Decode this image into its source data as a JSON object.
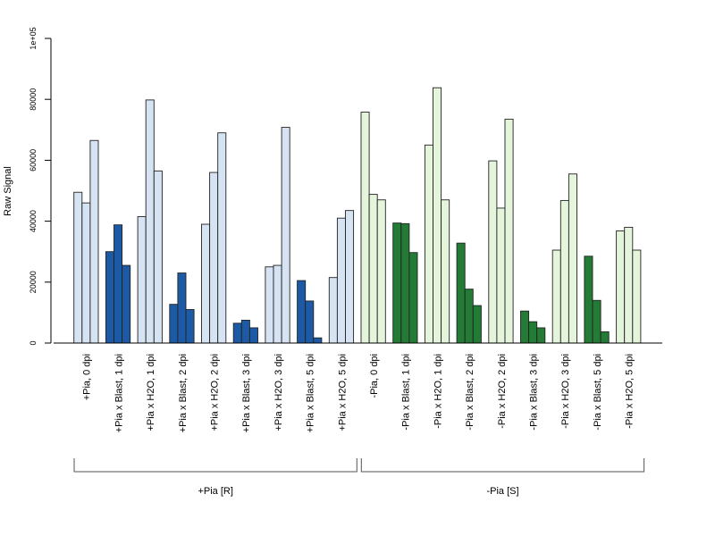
{
  "chart_data": {
    "type": "bar",
    "ylabel": "Raw Signal",
    "ylim": [
      0,
      100000
    ],
    "yticks": [
      0,
      20000,
      40000,
      60000,
      80000,
      100000
    ],
    "ytick_labels": [
      "0",
      "20000",
      "40000",
      "60000",
      "80000",
      "1e+05"
    ],
    "grid": false,
    "colors": {
      "pia_light": "#d6e3f3",
      "pia_dark": "#1c5aa6",
      "nopia_light": "#e4f5dc",
      "nopia_dark": "#237b35"
    },
    "categories": [
      {
        "label": "+Pia, 0 dpi",
        "values": [
          49500,
          46000,
          66500
        ],
        "color": "pia_light"
      },
      {
        "label": "+Pia x Blast, 1 dpi",
        "values": [
          30000,
          38800,
          25500
        ],
        "color": "pia_dark"
      },
      {
        "label": "+Pia x H2O, 1 dpi",
        "values": [
          41500,
          79800,
          56500
        ],
        "color": "pia_light"
      },
      {
        "label": "+Pia x Blast, 2 dpi",
        "values": [
          12700,
          23000,
          11000
        ],
        "color": "pia_dark"
      },
      {
        "label": "+Pia x H2O, 2 dpi",
        "values": [
          39000,
          56000,
          69000
        ],
        "color": "pia_light"
      },
      {
        "label": "+Pia x Blast, 3 dpi",
        "values": [
          6500,
          7500,
          5000
        ],
        "color": "pia_dark"
      },
      {
        "label": "+Pia x H2O, 3 dpi",
        "values": [
          25000,
          25500,
          70800
        ],
        "color": "pia_light"
      },
      {
        "label": "+Pia x Blast, 5 dpi",
        "values": [
          20500,
          13800,
          1700
        ],
        "color": "pia_dark"
      },
      {
        "label": "+Pia x H2O, 5 dpi",
        "values": [
          21500,
          41000,
          43500
        ],
        "color": "pia_light"
      },
      {
        "label": "-Pia, 0 dpi",
        "values": [
          75800,
          48800,
          47000
        ],
        "color": "nopia_light"
      },
      {
        "label": "-Pia x Blast, 1 dpi",
        "values": [
          39400,
          39200,
          29700
        ],
        "color": "nopia_dark"
      },
      {
        "label": "-Pia x H2O, 1 dpi",
        "values": [
          65000,
          83800,
          47000
        ],
        "color": "nopia_light"
      },
      {
        "label": "-Pia x Blast, 2 dpi",
        "values": [
          32800,
          17700,
          12300
        ],
        "color": "nopia_dark"
      },
      {
        "label": "-Pia x H2O, 2 dpi",
        "values": [
          59800,
          44300,
          73500
        ],
        "color": "nopia_light"
      },
      {
        "label": "-Pia x Blast, 3 dpi",
        "values": [
          10500,
          7000,
          5000
        ],
        "color": "nopia_dark"
      },
      {
        "label": "-Pia x H2O, 3 dpi",
        "values": [
          30500,
          46800,
          55500
        ],
        "color": "nopia_light"
      },
      {
        "label": "-Pia x Blast, 5 dpi",
        "values": [
          28500,
          14000,
          3700
        ],
        "color": "nopia_dark"
      },
      {
        "label": "-Pia x H2O, 5 dpi",
        "values": [
          36800,
          38000,
          30500
        ],
        "color": "nopia_light"
      }
    ],
    "groups": [
      {
        "label": "+Pia [R]",
        "first": 0,
        "last": 8
      },
      {
        "label": "-Pia [S]",
        "first": 9,
        "last": 17
      }
    ]
  }
}
